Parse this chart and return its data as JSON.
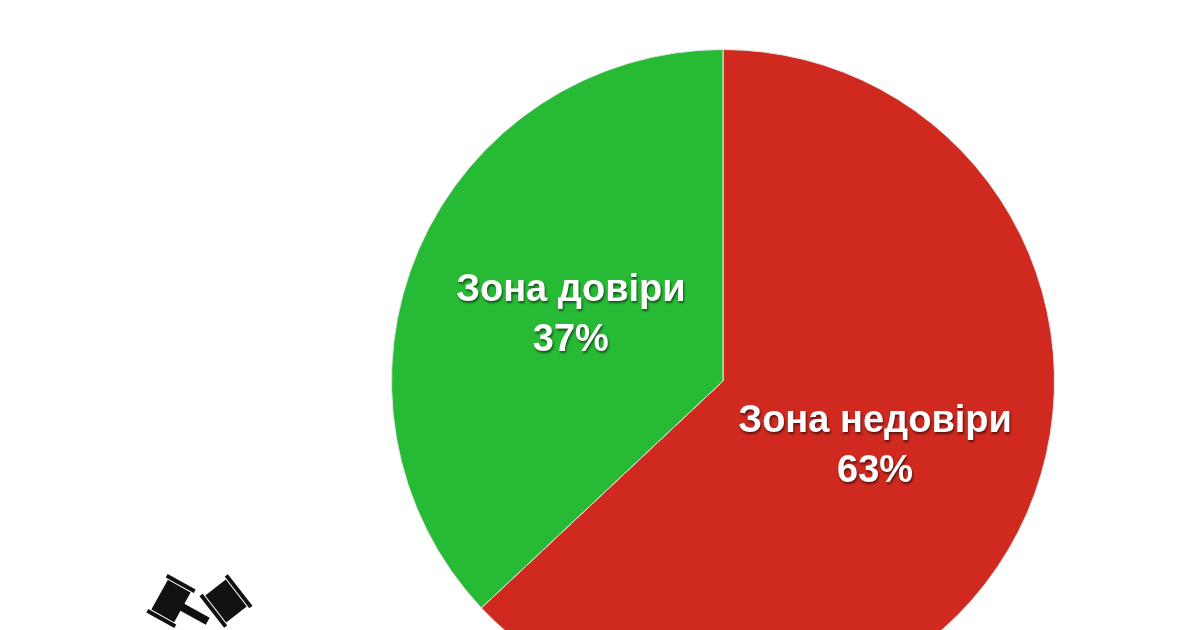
{
  "chart_data": {
    "type": "pie",
    "categories": [
      "Зона недовіри",
      "Зона довіри"
    ],
    "values": [
      63,
      37
    ],
    "colors": [
      "#d0291f",
      "#27bb35"
    ],
    "value_labels": [
      "63%",
      "37%"
    ]
  }
}
